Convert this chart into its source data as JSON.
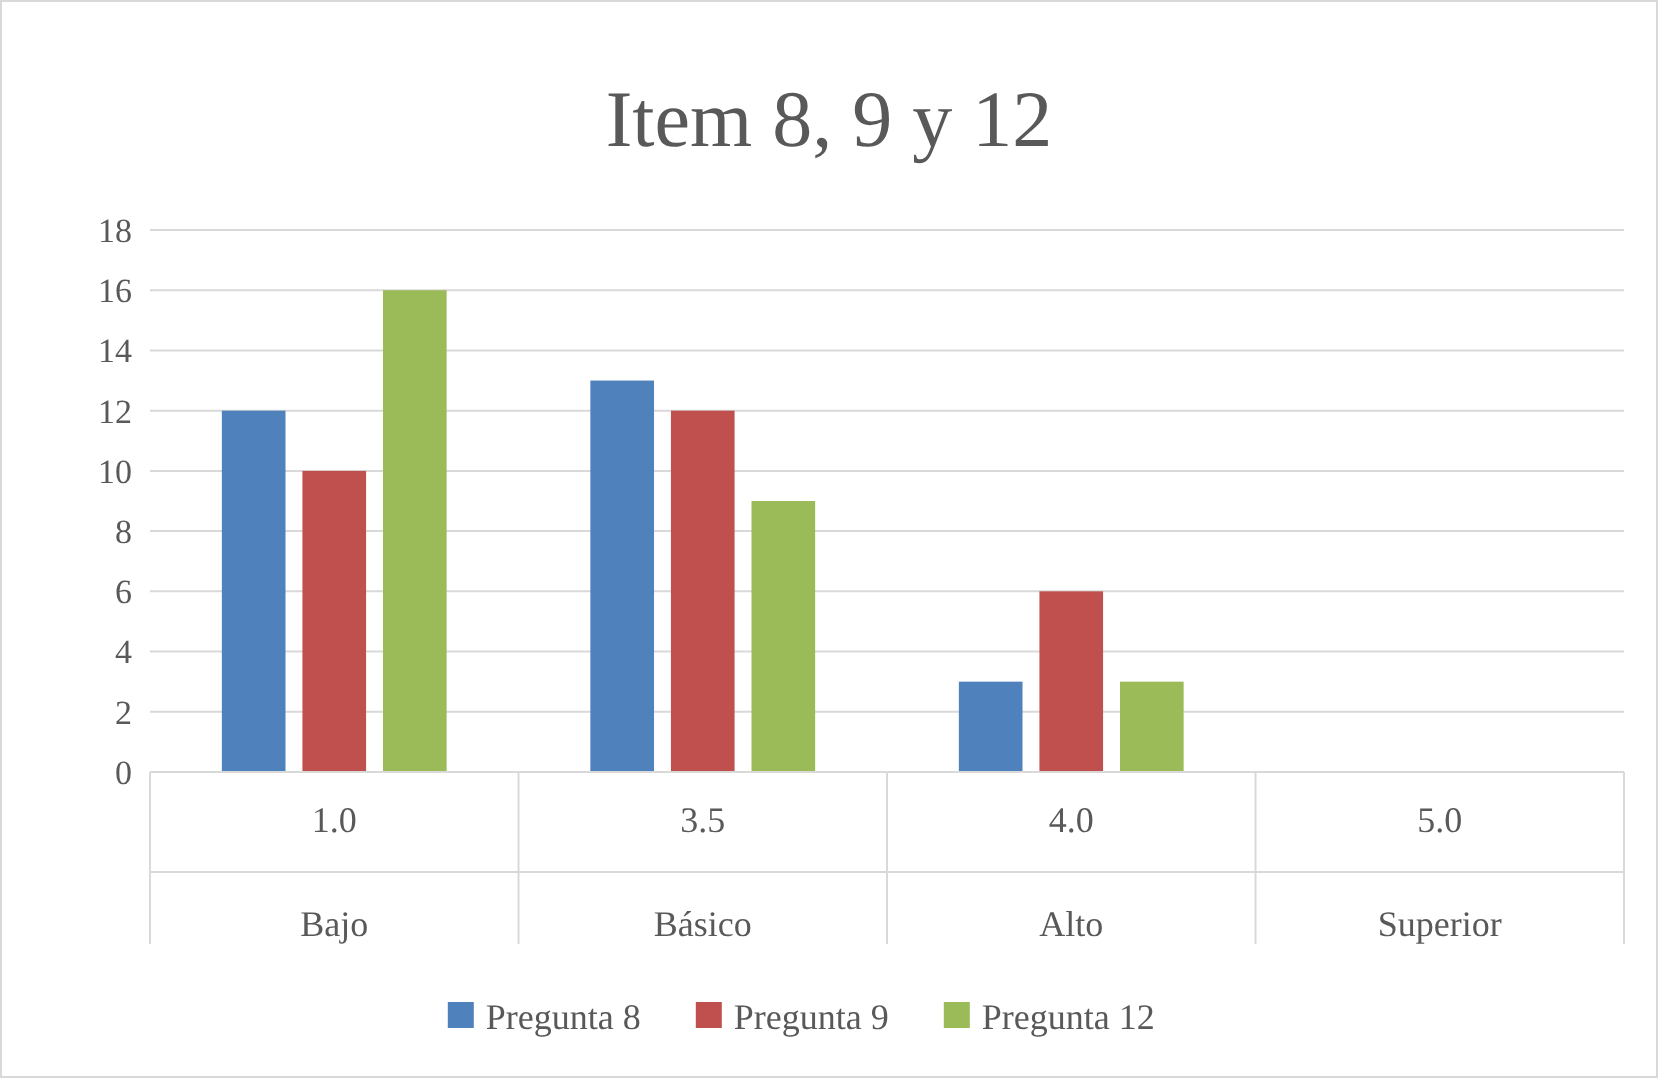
{
  "chart_data": {
    "type": "bar",
    "title": "Item 8, 9 y 12",
    "categories": [
      "1.0\nBajo",
      "3.5\nBásico",
      "4.0\nAlto",
      "5.0\nSuperior"
    ],
    "series": [
      {
        "name": "Pregunta 8",
        "color": "#4f81bd",
        "values": [
          12,
          13,
          3,
          0
        ]
      },
      {
        "name": "Pregunta 9",
        "color": "#c0504d",
        "values": [
          10,
          12,
          6,
          0
        ]
      },
      {
        "name": "Pregunta 12",
        "color": "#9bbb59",
        "values": [
          16,
          9,
          3,
          0
        ]
      }
    ],
    "ylim": [
      0,
      18
    ],
    "yticks": [
      0,
      2,
      4,
      6,
      8,
      10,
      12,
      14,
      16,
      18
    ],
    "grid": "y",
    "legend": "bottom"
  }
}
